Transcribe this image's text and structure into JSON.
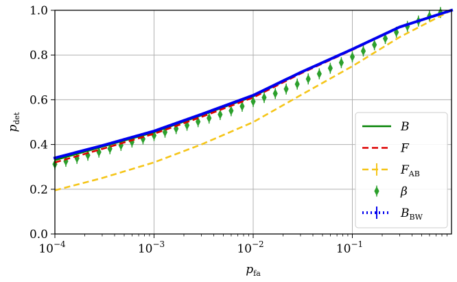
{
  "chart_data": {
    "type": "line",
    "x_scale": "log",
    "xlim": [
      0.0001,
      1.0
    ],
    "ylim": [
      0.0,
      1.0
    ],
    "grid": true,
    "xlabel": {
      "main": "p",
      "sub": "fa"
    },
    "ylabel": {
      "main": "p",
      "sub": "det"
    },
    "x_ticks": [
      {
        "value": 0.0001,
        "base": "10",
        "exp": "−4"
      },
      {
        "value": 0.001,
        "base": "10",
        "exp": "−3"
      },
      {
        "value": 0.01,
        "base": "10",
        "exp": "−2"
      },
      {
        "value": 0.1,
        "base": "10",
        "exp": "−1"
      }
    ],
    "y_ticks": [
      {
        "value": 0.0,
        "label": "0.0"
      },
      {
        "value": 0.2,
        "label": "0.2"
      },
      {
        "value": 0.4,
        "label": "0.4"
      },
      {
        "value": 0.6,
        "label": "0.6"
      },
      {
        "value": 0.8,
        "label": "0.8"
      },
      {
        "value": 1.0,
        "label": "1.0"
      }
    ],
    "legend_position": "lower right",
    "series": [
      {
        "name": "B",
        "name_sub": "",
        "style": "solid",
        "color": "#008000",
        "x": [
          0.0001,
          0.0003,
          0.001,
          0.003,
          0.01,
          0.03,
          0.1,
          0.3,
          1.0
        ],
        "y": [
          0.33,
          0.39,
          0.455,
          0.53,
          0.615,
          0.72,
          0.825,
          0.925,
          1.0
        ]
      },
      {
        "name": "F",
        "name_sub": "",
        "style": "dashed",
        "color": "#dd0000",
        "x": [
          0.0001,
          0.0003,
          0.001,
          0.003,
          0.01,
          0.03,
          0.1,
          0.3,
          1.0
        ],
        "y": [
          0.32,
          0.38,
          0.448,
          0.523,
          0.61,
          0.717,
          0.823,
          0.924,
          1.0
        ]
      },
      {
        "name": "F",
        "name_sub": "AB",
        "style": "dashed",
        "color": "#f5c518",
        "x": [
          0.0001,
          0.0003,
          0.001,
          0.003,
          0.01,
          0.03,
          0.1,
          0.3,
          1.0
        ],
        "y": [
          0.195,
          0.25,
          0.32,
          0.4,
          0.5,
          0.62,
          0.75,
          0.88,
          1.0
        ]
      },
      {
        "name": "β",
        "name_sub": "",
        "style": "markers",
        "color": "#2ca02c",
        "x": [
          0.0001,
          0.000129,
          0.000167,
          0.000215,
          0.000278,
          0.000359,
          0.000464,
          0.000599,
          0.000774,
          0.001,
          0.00129,
          0.00167,
          0.00215,
          0.00278,
          0.00359,
          0.00464,
          0.00599,
          0.00774,
          0.01,
          0.0129,
          0.0167,
          0.0215,
          0.0278,
          0.0359,
          0.0464,
          0.0599,
          0.0774,
          0.1,
          0.129,
          0.167,
          0.215,
          0.278,
          0.359,
          0.464,
          0.599,
          0.774
        ],
        "y": [
          0.312,
          0.325,
          0.338,
          0.352,
          0.366,
          0.381,
          0.396,
          0.411,
          0.425,
          0.44,
          0.455,
          0.471,
          0.486,
          0.502,
          0.518,
          0.534,
          0.551,
          0.571,
          0.592,
          0.61,
          0.628,
          0.648,
          0.67,
          0.693,
          0.716,
          0.741,
          0.766,
          0.792,
          0.818,
          0.846,
          0.874,
          0.902,
          0.928,
          0.952,
          0.974,
          0.99
        ]
      },
      {
        "name": "B",
        "name_sub": "BW",
        "style": "dotted",
        "color": "#0000ee",
        "x": [
          0.0001,
          0.0003,
          0.001,
          0.003,
          0.01,
          0.03,
          0.1,
          0.3,
          1.0
        ],
        "y": [
          0.34,
          0.395,
          0.46,
          0.535,
          0.62,
          0.722,
          0.826,
          0.925,
          1.0
        ]
      }
    ]
  }
}
